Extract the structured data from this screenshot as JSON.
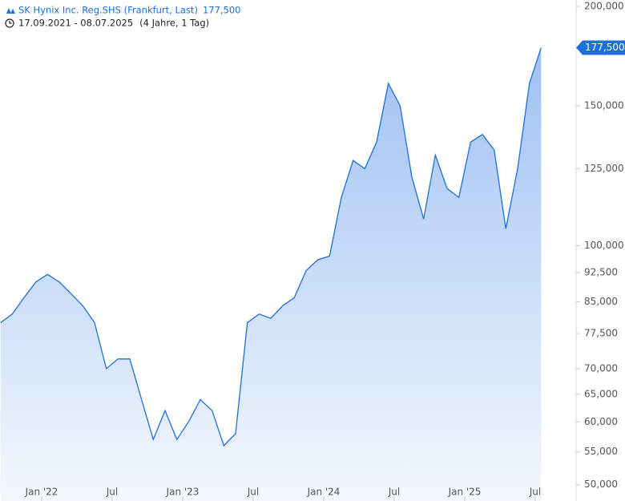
{
  "chart_data": {
    "type": "area",
    "title": "SK Hynix Inc. Reg.SHS (Frankfurt, Last)",
    "subtitle": "17.09.2021 - 08.07.2025",
    "period": "(4 Jahre, 1 Tag)",
    "log_scale": true,
    "x": [
      "2021-09",
      "2021-10",
      "2021-11",
      "2021-12",
      "2022-01",
      "2022-02",
      "2022-03",
      "2022-04",
      "2022-05",
      "2022-06",
      "2022-07",
      "2022-08",
      "2022-09",
      "2022-10",
      "2022-11",
      "2022-12",
      "2023-01",
      "2023-02",
      "2023-03",
      "2023-04",
      "2023-05",
      "2023-06",
      "2023-07",
      "2023-08",
      "2023-09",
      "2023-10",
      "2023-11",
      "2023-12",
      "2024-01",
      "2024-02",
      "2024-03",
      "2024-04",
      "2024-05",
      "2024-06",
      "2024-07",
      "2024-08",
      "2024-09",
      "2024-10",
      "2024-11",
      "2024-12",
      "2025-01",
      "2025-02",
      "2025-03",
      "2025-04",
      "2025-05",
      "2025-06",
      "2025-07"
    ],
    "series": [
      {
        "name": "SK Hynix Inc. Reg.SHS",
        "color": "#1f6fd8",
        "values": [
          80000,
          82000,
          86000,
          90000,
          92000,
          90000,
          87000,
          84000,
          80000,
          70000,
          72000,
          72000,
          64000,
          57000,
          62000,
          57000,
          60000,
          64000,
          62000,
          56000,
          58000,
          80000,
          82000,
          81000,
          84000,
          86000,
          93000,
          96000,
          97000,
          115000,
          128000,
          125000,
          135000,
          160000,
          150000,
          122000,
          108000,
          130000,
          118000,
          115000,
          135000,
          138000,
          132000,
          105000,
          125000,
          160000,
          177500
        ],
        "value_labels": [
          null,
          null,
          null,
          null,
          null,
          null,
          null,
          null,
          null,
          null,
          null,
          null,
          null,
          null,
          null,
          null,
          null,
          null,
          null,
          null,
          null,
          null,
          null,
          null,
          null,
          null,
          null,
          null,
          null,
          null,
          null,
          null,
          null,
          null,
          null,
          null,
          null,
          null,
          null,
          null,
          null,
          null,
          null,
          null,
          null,
          null,
          "177,500"
        ]
      }
    ],
    "xticks": [
      {
        "value": "2022-01",
        "label": "Jan '22"
      },
      {
        "value": "2022-07",
        "label": "Jul"
      },
      {
        "value": "2023-01",
        "label": "Jan '23"
      },
      {
        "value": "2023-07",
        "label": "Jul"
      },
      {
        "value": "2024-01",
        "label": "Jan '24"
      },
      {
        "value": "2024-07",
        "label": "Jul"
      },
      {
        "value": "2025-01",
        "label": "Jan '25"
      },
      {
        "value": "2025-07",
        "label": "Jul"
      }
    ],
    "ylim": [
      47700,
      203800
    ],
    "yticks": [
      {
        "value": 50000,
        "label": "50,000"
      },
      {
        "value": 55000,
        "label": "55,000"
      },
      {
        "value": 60000,
        "label": "60,000"
      },
      {
        "value": 65000,
        "label": "65,000"
      },
      {
        "value": 70000,
        "label": "70,000"
      },
      {
        "value": 77500,
        "label": "77,500"
      },
      {
        "value": 85000,
        "label": "85,000"
      },
      {
        "value": 92500,
        "label": "92,500"
      },
      {
        "value": 100000,
        "label": "100,000"
      },
      {
        "value": 125000,
        "label": "125,000"
      },
      {
        "value": 150000,
        "label": "150,000"
      },
      {
        "value": 200000,
        "label": "200,000"
      }
    ]
  }
}
